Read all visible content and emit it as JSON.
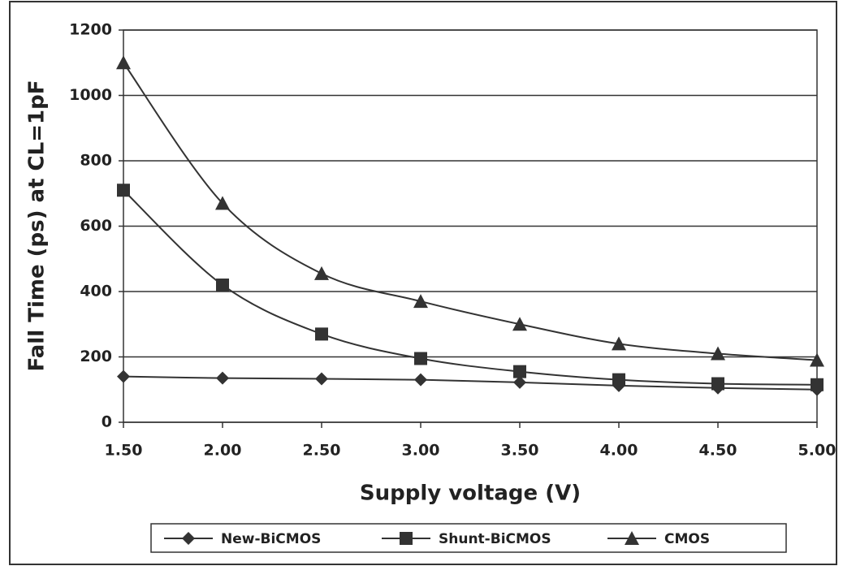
{
  "chart_data": {
    "type": "line",
    "xlabel": "Supply voltage (V)",
    "ylabel": "Fall Time (ps) at CL=1pF",
    "x": [
      1.5,
      2.0,
      2.5,
      3.0,
      3.5,
      4.0,
      4.5,
      5.0
    ],
    "series": [
      {
        "name": "New-BiCMOS",
        "color": "#333333",
        "marker": "diamond",
        "values": [
          140,
          135,
          133,
          130,
          122,
          112,
          105,
          100
        ]
      },
      {
        "name": "Shunt-BiCMOS",
        "color": "#333333",
        "marker": "square",
        "values": [
          710,
          420,
          270,
          195,
          155,
          130,
          118,
          115
        ]
      },
      {
        "name": "CMOS",
        "color": "#333333",
        "marker": "triangle",
        "values": [
          1100,
          670,
          455,
          370,
          300,
          240,
          210,
          190
        ]
      }
    ],
    "xlim": [
      1.5,
      5.0
    ],
    "xticks": [
      {
        "value": 1.5,
        "label": "1.50"
      },
      {
        "value": 2.0,
        "label": "2.00"
      },
      {
        "value": 2.5,
        "label": "2.50"
      },
      {
        "value": 3.0,
        "label": "3.00"
      },
      {
        "value": 3.5,
        "label": "3.50"
      },
      {
        "value": 4.0,
        "label": "4.00"
      },
      {
        "value": 4.5,
        "label": "4.50"
      },
      {
        "value": 5.0,
        "label": "5.00"
      }
    ],
    "ylim": [
      0,
      1200
    ],
    "yticks": [
      0,
      200,
      400,
      600,
      800,
      1000,
      1200
    ],
    "grid": true,
    "legend": "bottom"
  }
}
